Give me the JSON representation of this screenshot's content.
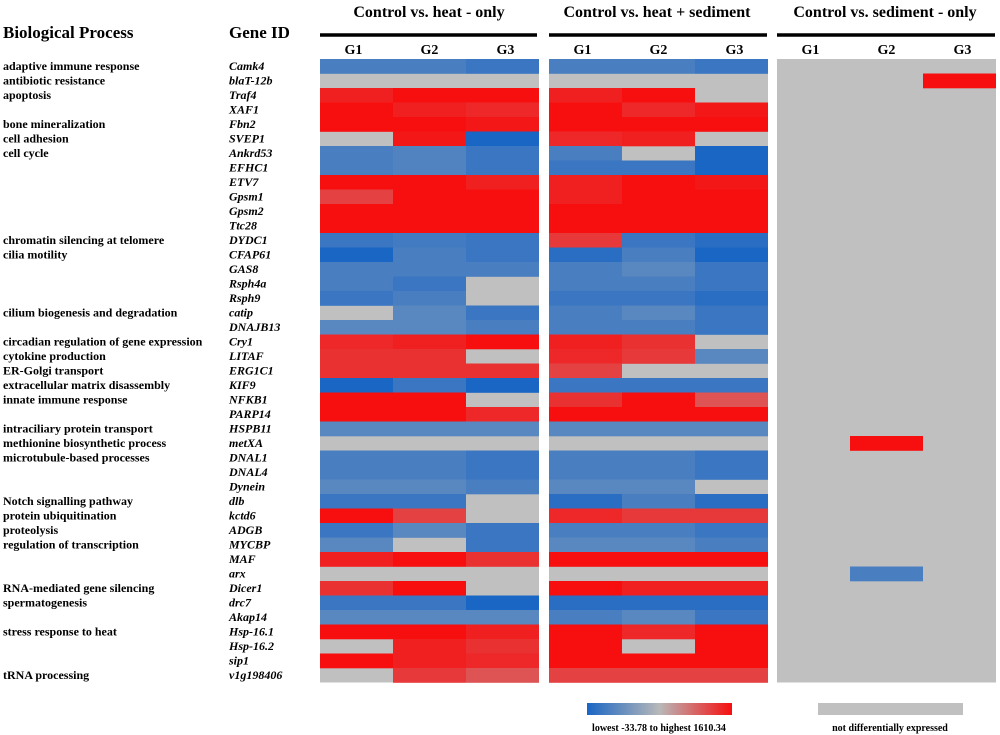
{
  "chart_data": {
    "type": "heatmap",
    "headers": {
      "process": "Biological Process",
      "gene": "Gene ID"
    },
    "groups": [
      {
        "title": "Control vs. heat - only",
        "subs": [
          "G1",
          "G2",
          "G3"
        ]
      },
      {
        "title": "Control vs. heat + sediment",
        "subs": [
          "G1",
          "G2",
          "G3"
        ]
      },
      {
        "title": "Control vs. sediment - only",
        "subs": [
          "G1",
          "G2",
          "G3"
        ]
      }
    ],
    "colors": {
      "red": "#f70f0f",
      "blue": "#1a66c4",
      "mid": "#b8b8b8",
      "gray": "#c0c0c0"
    },
    "legend": {
      "gradient_label": "lowest -33.78 to highest 1610.34",
      "gray_label": "not differentially expressed"
    },
    "genes": [
      "Camk4",
      "blaT-12b",
      "Traf4",
      "XAF1",
      "Fbn2",
      "SVEP1",
      "Ankrd53",
      "EFHC1",
      "ETV7",
      "Gpsm1",
      "Gpsm2",
      "Ttc28",
      "DYDC1",
      "CFAP61",
      "GAS8",
      "Rsph4a",
      "Rsph9",
      "catip",
      "DNAJB13",
      "Cry1",
      "LITAF",
      "ERG1C1",
      "KIF9",
      "NFKB1",
      "PARP14",
      "HSPB11",
      "metXA",
      "DNAL1",
      "DNAL4",
      "Dynein",
      "dlb",
      "kctd6",
      "ADGB",
      "MYCBP",
      "MAF",
      "arx",
      "Dicer1",
      "drc7",
      "Akap14",
      "Hsp-16.1",
      "Hsp-16.2",
      "sip1",
      "v1g198406"
    ],
    "processes": [
      {
        "label": "adaptive immune response",
        "row": 0
      },
      {
        "label": "antibiotic resistance",
        "row": 1
      },
      {
        "label": "apoptosis",
        "row": 2
      },
      {
        "label": "bone mineralization",
        "row": 4
      },
      {
        "label": "cell adhesion",
        "row": 5
      },
      {
        "label": "cell cycle",
        "row": 6
      },
      {
        "label": "chromatin silencing at telomere",
        "row": 12
      },
      {
        "label": "cilia motility",
        "row": 13
      },
      {
        "label": "cilium biogenesis and degradation",
        "row": 17
      },
      {
        "label": "circadian regulation of gene expression",
        "row": 19
      },
      {
        "label": "cytokine production",
        "row": 20
      },
      {
        "label": "ER-Golgi transport",
        "row": 21
      },
      {
        "label": "extracellular matrix disassembly",
        "row": 22
      },
      {
        "label": "innate immune response",
        "row": 23
      },
      {
        "label": "intraciliary protein transport",
        "row": 25
      },
      {
        "label": "methionine biosynthetic process",
        "row": 26
      },
      {
        "label": "microtubule-based processes",
        "row": 27
      },
      {
        "label": "Notch signalling pathway",
        "row": 30
      },
      {
        "label": "protein ubiquitination",
        "row": 31
      },
      {
        "label": "proteolysis",
        "row": 32
      },
      {
        "label": "regulation of transcription",
        "row": 33
      },
      {
        "label": "RNA-mediated gene silencing",
        "row": 36
      },
      {
        "label": "spermatogenesis",
        "row": 37
      },
      {
        "label": "stress response to heat",
        "row": 39
      },
      {
        "label": "tRNA processing",
        "row": 42
      }
    ],
    "value_scale": "per-cell intensity: -1 = lowest (blue), +1 = highest (red), null = not differentially expressed (gray)",
    "heat_only": [
      [
        -0.7,
        -0.7,
        -0.8
      ],
      [
        null,
        null,
        null
      ],
      [
        0.9,
        1,
        1
      ],
      [
        1,
        0.9,
        0.85
      ],
      [
        1,
        1,
        0.95
      ],
      [
        null,
        0.95,
        -1
      ],
      [
        -0.7,
        -0.65,
        -0.8
      ],
      [
        -0.7,
        -0.65,
        -0.8
      ],
      [
        1,
        1,
        0.9
      ],
      [
        0.7,
        1,
        1
      ],
      [
        1,
        1,
        1
      ],
      [
        1,
        1,
        1
      ],
      [
        -0.8,
        -0.75,
        -0.8
      ],
      [
        -1,
        -0.7,
        -0.8
      ],
      [
        -0.7,
        -0.7,
        -0.7
      ],
      [
        -0.7,
        -0.8,
        null
      ],
      [
        -0.8,
        -0.7,
        null
      ],
      [
        null,
        -0.6,
        -0.8
      ],
      [
        -0.6,
        -0.6,
        -0.7
      ],
      [
        0.85,
        0.9,
        1
      ],
      [
        0.8,
        0.8,
        null
      ],
      [
        0.8,
        0.8,
        0.8
      ],
      [
        -1,
        -0.8,
        -1
      ],
      [
        1,
        1,
        null
      ],
      [
        1,
        1,
        0.85
      ],
      [
        -0.6,
        -0.6,
        -0.6
      ],
      [
        null,
        null,
        null
      ],
      [
        -0.7,
        -0.7,
        -0.8
      ],
      [
        -0.7,
        -0.7,
        -0.8
      ],
      [
        -0.6,
        -0.6,
        -0.7
      ],
      [
        -0.8,
        -0.8,
        null
      ],
      [
        1,
        0.7,
        null
      ],
      [
        -0.8,
        -0.6,
        -0.8
      ],
      [
        -0.6,
        null,
        -0.8
      ],
      [
        0.9,
        1,
        0.8
      ],
      [
        null,
        null,
        null
      ],
      [
        0.8,
        1,
        null
      ],
      [
        -0.8,
        -0.8,
        -1
      ],
      [
        -0.6,
        -0.6,
        -0.6
      ],
      [
        1,
        1,
        0.9
      ],
      [
        null,
        0.9,
        0.8
      ],
      [
        1,
        0.9,
        0.85
      ],
      [
        null,
        0.75,
        0.6
      ]
    ],
    "heat_sediment": [
      [
        -0.7,
        -0.7,
        -0.8
      ],
      [
        null,
        null,
        null
      ],
      [
        0.9,
        1,
        null
      ],
      [
        1,
        0.85,
        0.95
      ],
      [
        1,
        1,
        1
      ],
      [
        0.85,
        0.9,
        null
      ],
      [
        -0.7,
        null,
        -1
      ],
      [
        -0.8,
        -0.8,
        -1
      ],
      [
        0.9,
        1,
        0.95
      ],
      [
        0.9,
        1,
        1
      ],
      [
        1,
        1,
        1
      ],
      [
        1,
        1,
        1
      ],
      [
        0.75,
        -0.8,
        -0.9
      ],
      [
        -0.9,
        -0.7,
        -1
      ],
      [
        -0.7,
        -0.6,
        -0.8
      ],
      [
        -0.7,
        -0.7,
        -0.8
      ],
      [
        -0.8,
        -0.8,
        -0.9
      ],
      [
        -0.7,
        -0.6,
        -0.8
      ],
      [
        -0.7,
        -0.7,
        -0.8
      ],
      [
        0.9,
        0.8,
        null
      ],
      [
        0.85,
        0.75,
        -0.6
      ],
      [
        0.7,
        null,
        null
      ],
      [
        -0.8,
        -0.8,
        -0.8
      ],
      [
        0.8,
        1,
        0.6
      ],
      [
        1,
        1,
        1
      ],
      [
        -0.6,
        -0.6,
        -0.6
      ],
      [
        null,
        null,
        null
      ],
      [
        -0.7,
        -0.7,
        -0.8
      ],
      [
        -0.7,
        -0.7,
        -0.8
      ],
      [
        -0.6,
        -0.6,
        null
      ],
      [
        -0.9,
        -0.7,
        -0.9
      ],
      [
        0.85,
        0.75,
        0.75
      ],
      [
        -0.7,
        -0.7,
        -0.8
      ],
      [
        -0.6,
        -0.6,
        -0.7
      ],
      [
        1,
        1,
        1
      ],
      [
        null,
        null,
        null
      ],
      [
        1,
        0.9,
        0.9
      ],
      [
        -0.9,
        -0.9,
        -0.9
      ],
      [
        -0.7,
        -0.6,
        -0.8
      ],
      [
        1,
        0.85,
        1
      ],
      [
        1,
        null,
        1
      ],
      [
        1,
        1,
        1
      ],
      [
        0.7,
        0.7,
        0.7
      ]
    ],
    "sediment_only": [
      [
        null,
        null,
        null
      ],
      [
        null,
        null,
        1
      ],
      [
        null,
        null,
        null
      ],
      [
        null,
        null,
        null
      ],
      [
        null,
        null,
        null
      ],
      [
        null,
        null,
        null
      ],
      [
        null,
        null,
        null
      ],
      [
        null,
        null,
        null
      ],
      [
        null,
        null,
        null
      ],
      [
        null,
        null,
        null
      ],
      [
        null,
        null,
        null
      ],
      [
        null,
        null,
        null
      ],
      [
        null,
        null,
        null
      ],
      [
        null,
        null,
        null
      ],
      [
        null,
        null,
        null
      ],
      [
        null,
        null,
        null
      ],
      [
        null,
        null,
        null
      ],
      [
        null,
        null,
        null
      ],
      [
        null,
        null,
        null
      ],
      [
        null,
        null,
        null
      ],
      [
        null,
        null,
        null
      ],
      [
        null,
        null,
        null
      ],
      [
        null,
        null,
        null
      ],
      [
        null,
        null,
        null
      ],
      [
        null,
        null,
        null
      ],
      [
        null,
        null,
        null
      ],
      [
        null,
        1,
        null
      ],
      [
        null,
        null,
        null
      ],
      [
        null,
        null,
        null
      ],
      [
        null,
        null,
        null
      ],
      [
        null,
        null,
        null
      ],
      [
        null,
        null,
        null
      ],
      [
        null,
        null,
        null
      ],
      [
        null,
        null,
        null
      ],
      [
        null,
        null,
        null
      ],
      [
        null,
        -0.7,
        null
      ],
      [
        null,
        null,
        null
      ],
      [
        null,
        null,
        null
      ],
      [
        null,
        null,
        null
      ],
      [
        null,
        null,
        null
      ],
      [
        null,
        null,
        null
      ],
      [
        null,
        null,
        null
      ],
      [
        null,
        null,
        null
      ]
    ]
  }
}
